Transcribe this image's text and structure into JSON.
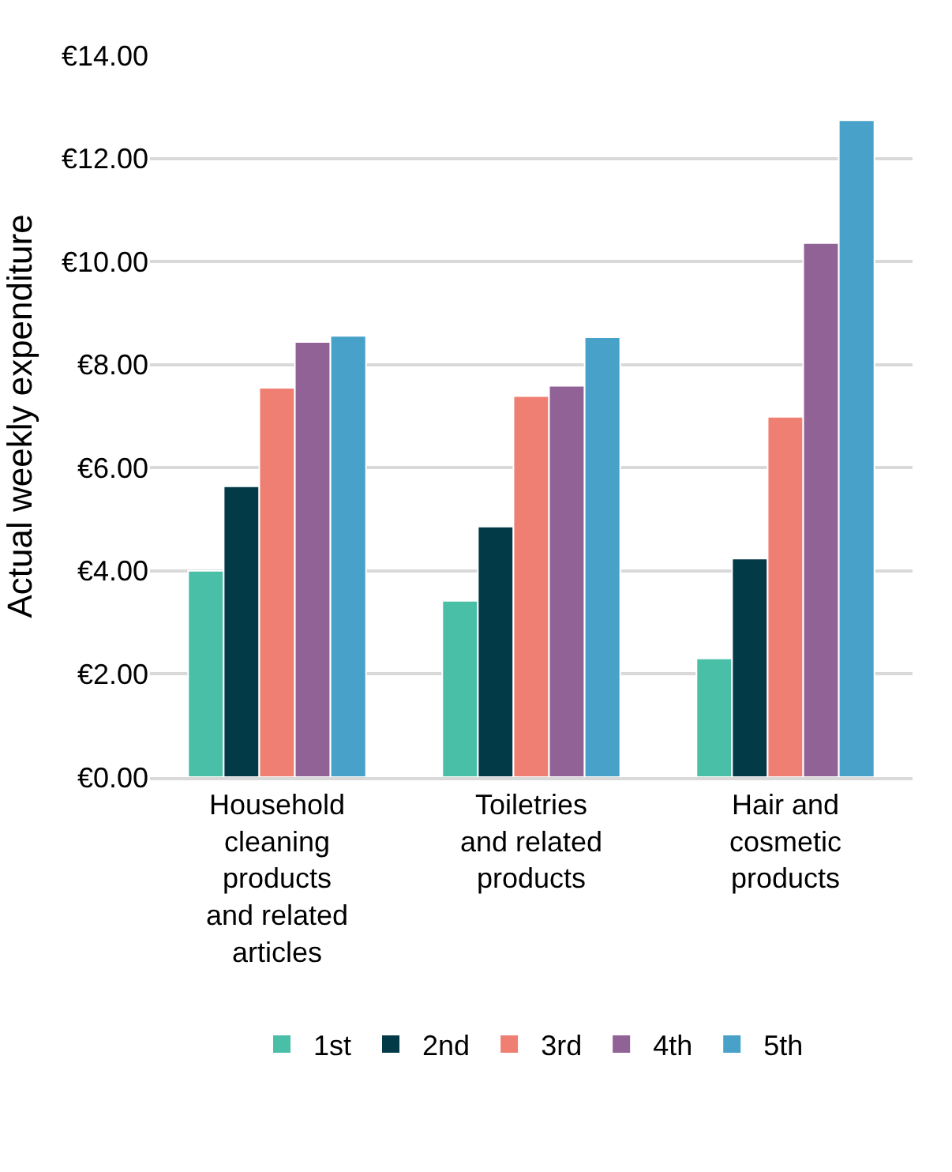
{
  "chart_data": {
    "type": "bar",
    "ylabel": "Actual weekly expenditure",
    "categories": [
      "Household cleaning products and related articles",
      "Toiletries and related products",
      "Hair and cosmetic products"
    ],
    "series": [
      {
        "name": "1st",
        "color": "#48bfa6",
        "values": [
          4.0,
          3.42,
          2.3
        ]
      },
      {
        "name": "2nd",
        "color": "#033a47",
        "values": [
          5.64,
          4.86,
          4.24
        ]
      },
      {
        "name": "3rd",
        "color": "#ef7f72",
        "values": [
          7.55,
          7.39,
          6.99
        ]
      },
      {
        "name": "4th",
        "color": "#906296",
        "values": [
          8.44,
          7.59,
          10.36
        ]
      },
      {
        "name": "5th",
        "color": "#47a1c8",
        "values": [
          8.56,
          8.53,
          12.74
        ]
      }
    ],
    "ylim": [
      0,
      14
    ],
    "yticks": [
      {
        "value": 0,
        "label": "€0.00"
      },
      {
        "value": 2,
        "label": "€2.00"
      },
      {
        "value": 4,
        "label": "€4.00"
      },
      {
        "value": 6,
        "label": "€6.00"
      },
      {
        "value": 8,
        "label": "€8.00"
      },
      {
        "value": 10,
        "label": "€10.00"
      },
      {
        "value": 12,
        "label": "€12.00"
      },
      {
        "value": 14,
        "label": "€14.00"
      }
    ],
    "grid": "y",
    "legend": "bottom"
  }
}
